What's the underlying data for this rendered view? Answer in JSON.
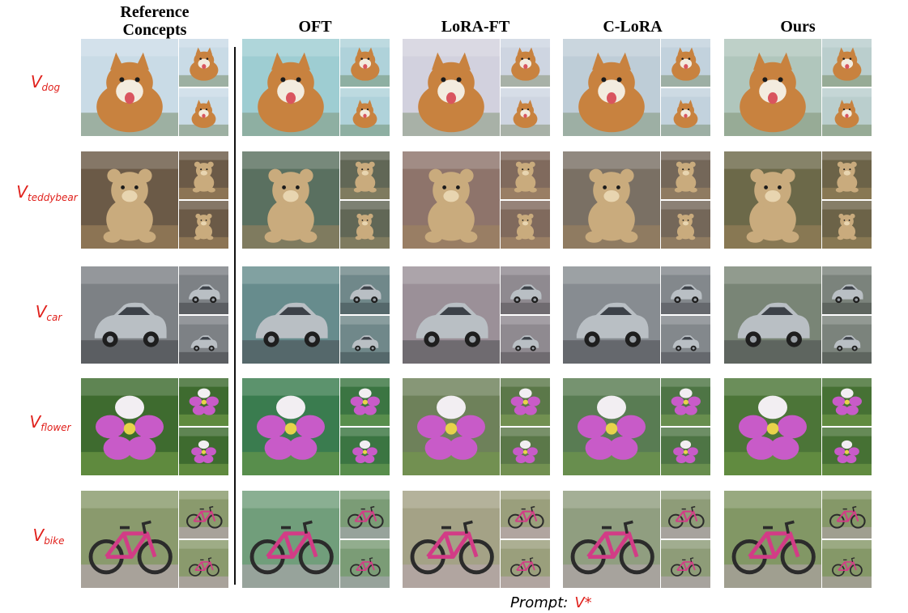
{
  "columns": [
    {
      "key": "reference",
      "label_line1": "Reference",
      "label_line2": "Concepts"
    },
    {
      "key": "oft",
      "label_line1": "OFT",
      "label_line2": ""
    },
    {
      "key": "lora_ft",
      "label_line1": "LoRA-FT",
      "label_line2": ""
    },
    {
      "key": "c_lora",
      "label_line1": "C-LoRA",
      "label_line2": ""
    },
    {
      "key": "ours",
      "label_line1": "Ours",
      "label_line2": ""
    }
  ],
  "rows": [
    {
      "key": "dog",
      "label_main": "V",
      "label_sub": "dog",
      "icon": "dog-photo-icon",
      "palette": {
        "bg": "#c9dbe6",
        "subject": "#c8823f",
        "accent": "#f3ecdf",
        "ground": "#9db0a2"
      }
    },
    {
      "key": "teddybear",
      "label_main": "V",
      "label_sub": "teddybear",
      "icon": "teddybear-photo-icon",
      "palette": {
        "bg": "#6b5a47",
        "subject": "#c9ab7d",
        "accent": "#e8d5b0",
        "ground": "#8c7454"
      }
    },
    {
      "key": "car",
      "label_main": "V",
      "label_sub": "car",
      "icon": "car-photo-icon",
      "palette": {
        "bg": "#7d8185",
        "subject": "#b9bfc4",
        "accent": "#3c4148",
        "ground": "#5b5e62"
      }
    },
    {
      "key": "flower",
      "label_main": "V",
      "label_sub": "flower",
      "icon": "flower-photo-icon",
      "palette": {
        "bg": "#3e6b2f",
        "subject": "#c85bc8",
        "accent": "#f2eef2",
        "ground": "#5f8a3e"
      }
    },
    {
      "key": "bike",
      "label_main": "V",
      "label_sub": "bike",
      "icon": "bike-photo-icon",
      "palette": {
        "bg": "#8a9a6d",
        "subject": "#d23c86",
        "accent": "#2b2b2b",
        "ground": "#a8a29a"
      }
    }
  ],
  "column_tints": {
    "reference": "#ffffff",
    "oft": "#2fa8a0",
    "lora_ft": "#e8b8c8",
    "c_lora": "#a0a8b0",
    "ours": "#6f8f4f"
  },
  "prompt": {
    "label": "Prompt:",
    "value": "V*"
  }
}
